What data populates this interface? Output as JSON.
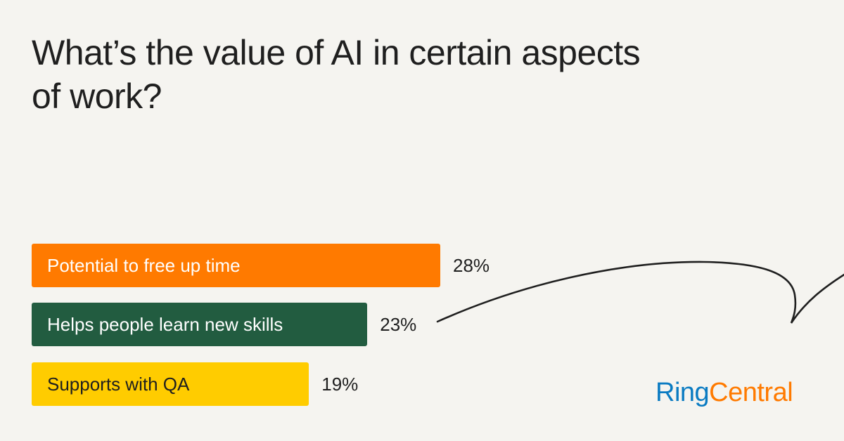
{
  "chart_data": {
    "type": "bar",
    "orientation": "horizontal",
    "title": "What’s the value of AI in certain aspects of work?",
    "categories": [
      "Potential to free up time",
      "Helps people learn new skills",
      "Supports with QA"
    ],
    "values": [
      28,
      23,
      19
    ],
    "value_labels": [
      "28%",
      "23%",
      "19%"
    ],
    "colors": [
      "#ff7a00",
      "#225c40",
      "#ffcc00"
    ],
    "text_colors": [
      "#ffffff",
      "#ffffff",
      "#1f1f1f"
    ],
    "grid": false
  },
  "brand": {
    "logo_part1": "Ring",
    "logo_part2": "Central",
    "colors": [
      "#0a7bc2",
      "#ff7a00"
    ]
  }
}
